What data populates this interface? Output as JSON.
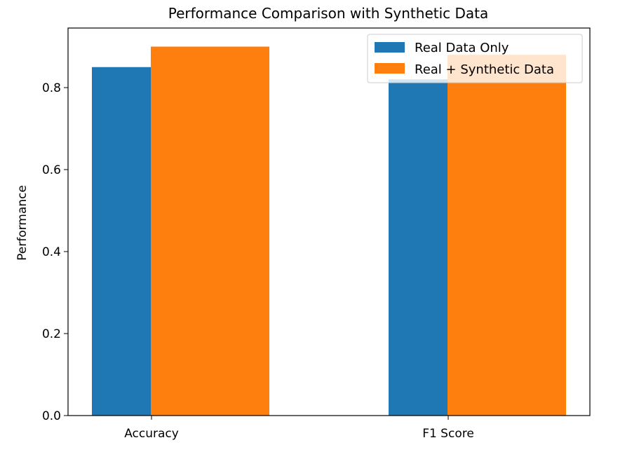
{
  "chart_data": {
    "type": "bar",
    "title": "Performance Comparison with Synthetic Data",
    "xlabel": "",
    "ylabel": "Performance",
    "categories": [
      "Accuracy",
      "F1 Score"
    ],
    "series": [
      {
        "name": "Real Data Only",
        "color": "#1f77b4",
        "values": [
          0.85,
          0.82
        ]
      },
      {
        "name": "Real + Synthetic Data",
        "color": "#ff7f0e",
        "values": [
          0.9,
          0.88
        ]
      }
    ],
    "ylim": [
      0,
      0.945
    ],
    "yticks": [
      0.0,
      0.2,
      0.4,
      0.6,
      0.8
    ],
    "ytick_labels": [
      "0.0",
      "0.2",
      "0.4",
      "0.6",
      "0.8"
    ],
    "grid": false,
    "legend": "upper right"
  }
}
